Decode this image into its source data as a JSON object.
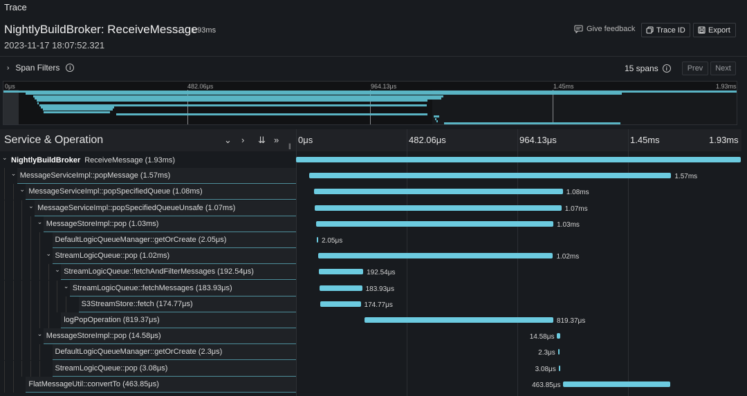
{
  "panel": {
    "title": "Trace"
  },
  "trace": {
    "service": "NightlyBuildBroker",
    "operation": "ReceiveMessage",
    "title": "NightlyBuildBroker: ReceiveMessage",
    "duration": "1.93ms",
    "start_time": "2023-11-17 18:07:52.321"
  },
  "actions": {
    "feedback_label": "Give feedback",
    "trace_id_label": "Trace ID",
    "export_label": "Export"
  },
  "filters": {
    "label": "Span Filters",
    "span_count": "15 spans",
    "prev_label": "Prev",
    "next_label": "Next"
  },
  "minimap": {
    "ticks": [
      "0μs",
      "482.06μs",
      "964.13μs",
      "1.45ms",
      "1.93ms"
    ]
  },
  "timeline": {
    "column_title": "Service & Operation",
    "ticks": [
      "0μs",
      "482.06μs",
      "964.13μs",
      "1.45ms",
      "1.93ms"
    ]
  },
  "spans": [
    {
      "depth": 0,
      "expandable": true,
      "service": "NightlyBuildBroker",
      "name": "ReceiveMessage (1.93ms)",
      "start_us": 0,
      "duration_us": 1930,
      "bar_label": ""
    },
    {
      "depth": 1,
      "expandable": true,
      "service": "",
      "name": "MessageServiceImpl::popMessage (1.57ms)",
      "start_us": 58,
      "duration_us": 1570,
      "bar_label": "1.57ms"
    },
    {
      "depth": 2,
      "expandable": true,
      "service": "",
      "name": "MessageServiceImpl::popSpecifiedQueue (1.08ms)",
      "start_us": 78,
      "duration_us": 1080,
      "bar_label": "1.08ms"
    },
    {
      "depth": 3,
      "expandable": true,
      "service": "",
      "name": "MessageServiceImpl::popSpecifiedQueueUnsafe (1.07ms)",
      "start_us": 82,
      "duration_us": 1070,
      "bar_label": "1.07ms"
    },
    {
      "depth": 4,
      "expandable": true,
      "service": "",
      "name": "MessageStoreImpl::pop (1.03ms)",
      "start_us": 87,
      "duration_us": 1030,
      "bar_label": "1.03ms"
    },
    {
      "depth": 5,
      "expandable": false,
      "service": "",
      "name": "DefaultLogicQueueManager::getOrCreate (2.05μs)",
      "start_us": 90,
      "duration_us": 2.05,
      "bar_label": "2.05μs"
    },
    {
      "depth": 5,
      "expandable": true,
      "service": "",
      "name": "StreamLogicQueue::pop (1.02ms)",
      "start_us": 95,
      "duration_us": 1020,
      "bar_label": "1.02ms"
    },
    {
      "depth": 6,
      "expandable": true,
      "service": "",
      "name": "StreamLogicQueue::fetchAndFilterMessages (192.54μs)",
      "start_us": 99,
      "duration_us": 192.54,
      "bar_label": "192.54μs"
    },
    {
      "depth": 7,
      "expandable": true,
      "service": "",
      "name": "StreamLogicQueue::fetchMessages (183.93μs)",
      "start_us": 103,
      "duration_us": 183.93,
      "bar_label": "183.93μs"
    },
    {
      "depth": 8,
      "expandable": false,
      "service": "",
      "name": "S3StreamStore::fetch (174.77μs)",
      "start_us": 106,
      "duration_us": 174.77,
      "bar_label": "174.77μs"
    },
    {
      "depth": 6,
      "expandable": false,
      "service": "",
      "name": "logPopOperation (819.37μs)",
      "start_us": 297,
      "duration_us": 819.37,
      "bar_label": "819.37μs"
    },
    {
      "depth": 4,
      "expandable": true,
      "service": "",
      "name": "MessageStoreImpl::pop (14.58μs)",
      "start_us": 1133,
      "duration_us": 14.58,
      "bar_label": "14.58μs"
    },
    {
      "depth": 5,
      "expandable": false,
      "service": "",
      "name": "DefaultLogicQueueManager::getOrCreate (2.3μs)",
      "start_us": 1137,
      "duration_us": 2.3,
      "bar_label": "2.3μs"
    },
    {
      "depth": 5,
      "expandable": false,
      "service": "",
      "name": "StreamLogicQueue::pop (3.08μs)",
      "start_us": 1140,
      "duration_us": 3.08,
      "bar_label": "3.08μs"
    },
    {
      "depth": 2,
      "expandable": false,
      "service": "",
      "name": "FlatMessageUtil::convertTo (463.85μs)",
      "start_us": 1160,
      "duration_us": 463.85,
      "bar_label": "463.85μs"
    }
  ],
  "colors": {
    "bar": "#6ccbe0",
    "background": "#181b1f"
  }
}
